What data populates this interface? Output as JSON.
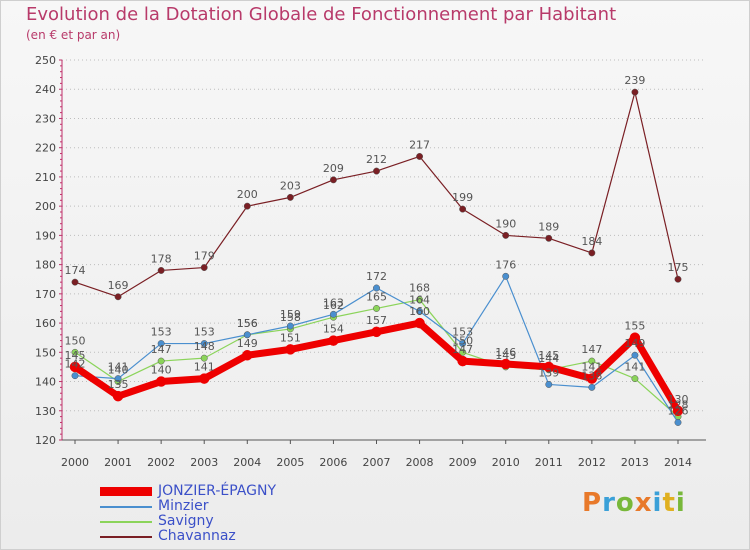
{
  "header": {
    "title": "Evolution de la Dotation Globale de Fonctionnement par Habitant",
    "subtitle": "(en € et par an)"
  },
  "brand": {
    "text": "Proxiti"
  },
  "chart_data": {
    "type": "line",
    "title": "Evolution de la Dotation Globale de Fonctionnement par Habitant",
    "subtitle": "(en € et par an)",
    "x": [
      2000,
      2001,
      2002,
      2003,
      2004,
      2005,
      2006,
      2007,
      2008,
      2009,
      2010,
      2011,
      2012,
      2013,
      2014
    ],
    "ylim": [
      120,
      250
    ],
    "yticks": [
      120,
      130,
      140,
      150,
      160,
      170,
      180,
      190,
      200,
      210,
      220,
      230,
      240,
      250
    ],
    "grid": "horizontal dotted",
    "legend": "bottom-left",
    "series": [
      {
        "name": "JONZIER-ÉPAGNY",
        "color": "#ee0000",
        "values": [
          145,
          135,
          140,
          141,
          149,
          151,
          154,
          157,
          160,
          147,
          146,
          145,
          141,
          155,
          130
        ]
      },
      {
        "name": "Minzier",
        "color": "#4a8fcf",
        "values": [
          142,
          141,
          153,
          153,
          156,
          159,
          163,
          172,
          164,
          153,
          176,
          139,
          138,
          149,
          126
        ]
      },
      {
        "name": "Savigny",
        "color": "#8bd45a",
        "values": [
          150,
          140,
          147,
          148,
          156,
          158,
          162,
          165,
          168,
          150,
          145,
          144,
          147,
          141,
          128
        ]
      },
      {
        "name": "Chavannaz",
        "color": "#7a1f24",
        "values": [
          174,
          169,
          178,
          179,
          200,
          203,
          209,
          212,
          217,
          199,
          190,
          189,
          184,
          239,
          175
        ]
      }
    ]
  }
}
